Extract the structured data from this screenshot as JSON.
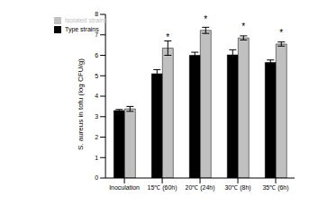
{
  "chart_data": {
    "type": "bar",
    "y_label": "S. aureus in tofu (log CFU/g)",
    "categories": [
      "Inoculation",
      "15℃ (60h)",
      "20℃ (24h)",
      "30℃ (8h)",
      "35℃ (6h)"
    ],
    "series": [
      {
        "name": "Type strains",
        "color": "#000000",
        "values": [
          3.3,
          5.1,
          6.0,
          6.02,
          5.65
        ],
        "errors": [
          0.05,
          0.2,
          0.15,
          0.25,
          0.12
        ],
        "significance": [
          null,
          null,
          null,
          null,
          null
        ]
      },
      {
        "name": "Isolated strains",
        "color": "#c0c0c0",
        "values": [
          3.38,
          6.35,
          7.22,
          6.85,
          6.55
        ],
        "errors": [
          0.12,
          0.35,
          0.15,
          0.1,
          0.1
        ],
        "significance": [
          null,
          "*",
          "*",
          "*",
          "*"
        ]
      }
    ],
    "ylim": [
      0,
      8
    ],
    "yticks": [
      0,
      1,
      2,
      3,
      4,
      5,
      6,
      7,
      8
    ],
    "legend": "upper left",
    "grid": false
  }
}
